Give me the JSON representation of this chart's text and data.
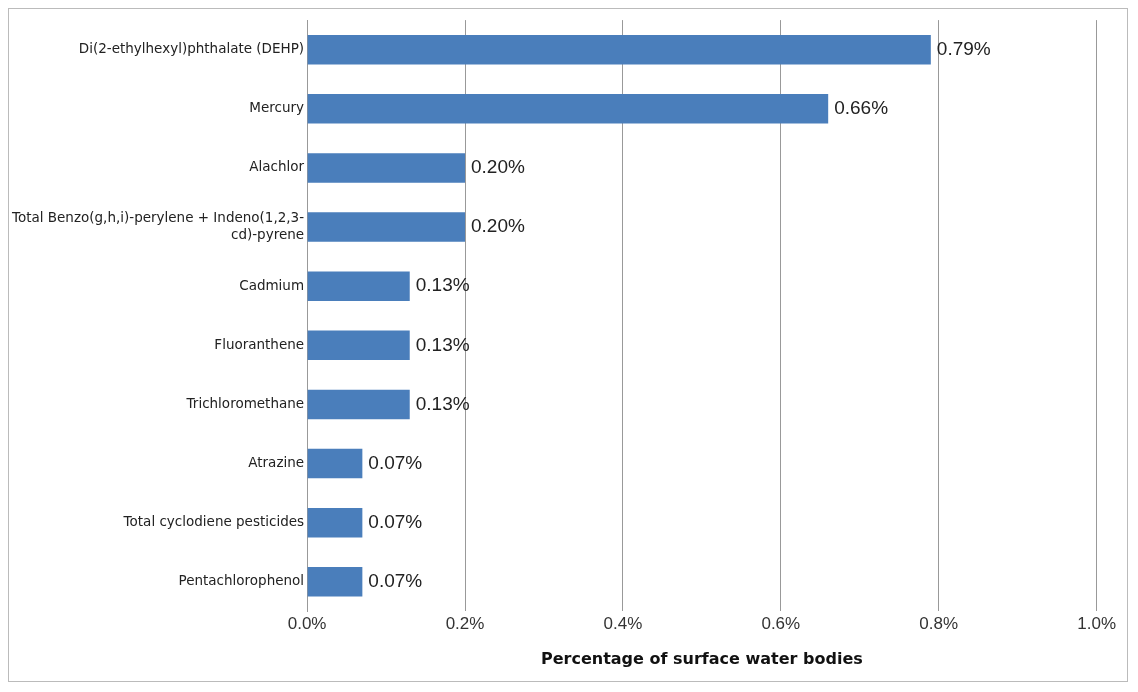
{
  "chart_data": {
    "type": "bar",
    "orientation": "horizontal",
    "xlabel": "Percentage of surface water bodies",
    "categories": [
      "Di(2-ethylhexyl)phthalate (DEHP)",
      "Mercury",
      "Alachlor",
      "Total Benzo(g,h,i)-perylene + Indeno(1,2,3-cd)-pyrene",
      "Cadmium",
      "Fluoranthene",
      "Trichloromethane",
      "Atrazine",
      "Total cyclodiene pesticides",
      "Pentachlorophenol"
    ],
    "values": [
      0.79,
      0.66,
      0.2,
      0.2,
      0.13,
      0.13,
      0.13,
      0.07,
      0.07,
      0.07
    ],
    "value_labels": [
      "0.79%",
      "0.66%",
      "0.20%",
      "0.20%",
      "0.13%",
      "0.13%",
      "0.13%",
      "0.07%",
      "0.07%",
      "0.07%"
    ],
    "color": "#4a7ebb",
    "xlim": [
      0,
      1
    ],
    "xticks": [
      {
        "value": 0,
        "label": "0.0%"
      },
      {
        "value": 0.2,
        "label": "0.2%"
      },
      {
        "value": 0.4,
        "label": "0.4%"
      },
      {
        "value": 0.6,
        "label": "0.6%"
      },
      {
        "value": 0.8,
        "label": "0.8%"
      },
      {
        "value": 1,
        "label": "1.0%"
      }
    ],
    "grid": "x"
  }
}
